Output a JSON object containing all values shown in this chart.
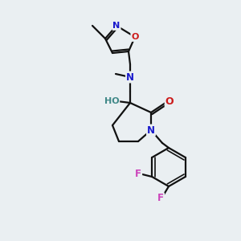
{
  "background_color": "#eaeff2",
  "atom_colors": {
    "N": "#1a1acc",
    "O": "#cc1a1a",
    "F": "#cc44bb",
    "H": "#408888",
    "C": "#000000"
  },
  "bond_color": "#111111",
  "lw": 1.6
}
